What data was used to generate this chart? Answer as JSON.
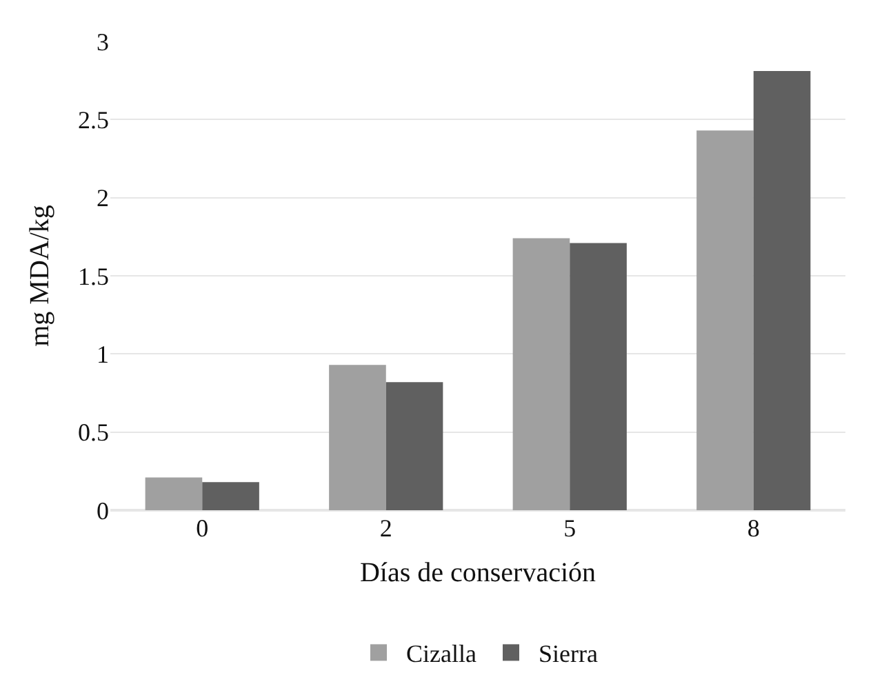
{
  "chart_data": {
    "type": "bar",
    "xlabel": "Días de conservación",
    "ylabel": "mg MDA/kg",
    "categories": [
      "0",
      "2",
      "5",
      "8"
    ],
    "series": [
      {
        "name": "Cizalla",
        "color": "#a0a0a0",
        "values": [
          0.21,
          0.93,
          1.74,
          2.43
        ]
      },
      {
        "name": "Sierra",
        "color": "#606060",
        "values": [
          0.18,
          0.82,
          1.71,
          2.81
        ]
      }
    ],
    "ylim": [
      0,
      3
    ],
    "yticks": [
      0,
      0.5,
      1,
      1.5,
      2,
      2.5,
      3
    ],
    "grid": "y",
    "legend": "bottom"
  }
}
